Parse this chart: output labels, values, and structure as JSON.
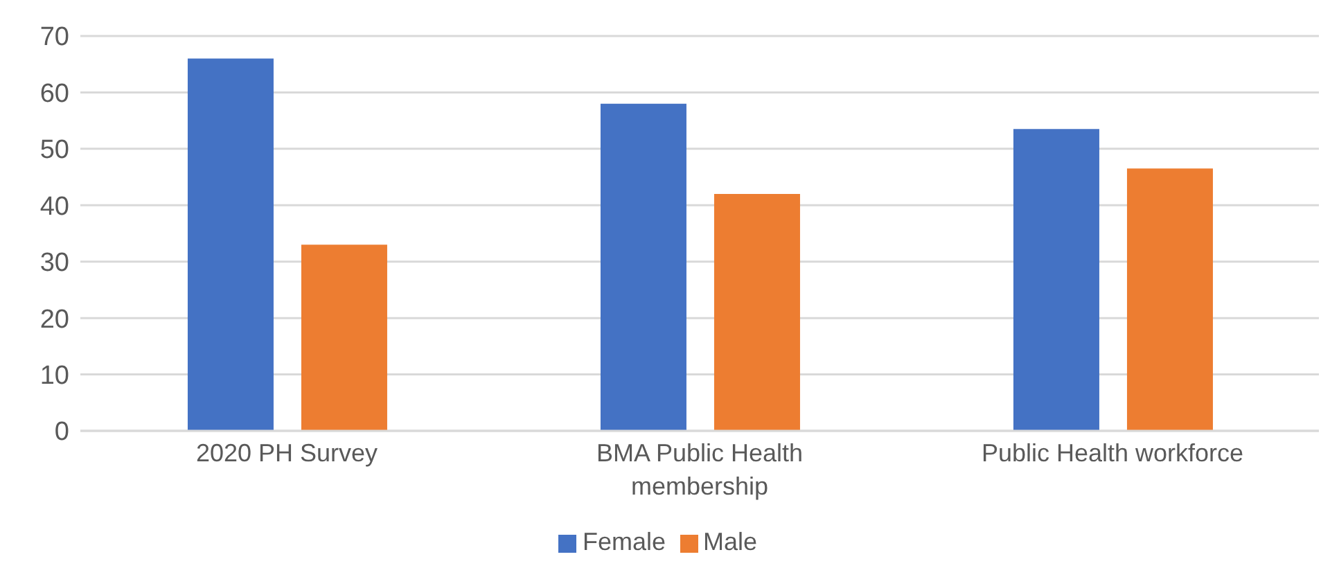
{
  "chart_data": {
    "type": "bar",
    "categories": [
      "2020 PH Survey",
      "BMA Public Health membership",
      "Public Health workforce"
    ],
    "series": [
      {
        "name": "Female",
        "color": "#4472c4",
        "values": [
          66,
          58,
          53.5
        ]
      },
      {
        "name": "Male",
        "color": "#ed7d31",
        "values": [
          33,
          42,
          46.5
        ]
      }
    ],
    "ylim": [
      0,
      70
    ],
    "yticks": [
      0,
      10,
      20,
      30,
      40,
      50,
      60,
      70
    ],
    "grid": "y",
    "legend": "bottom"
  }
}
